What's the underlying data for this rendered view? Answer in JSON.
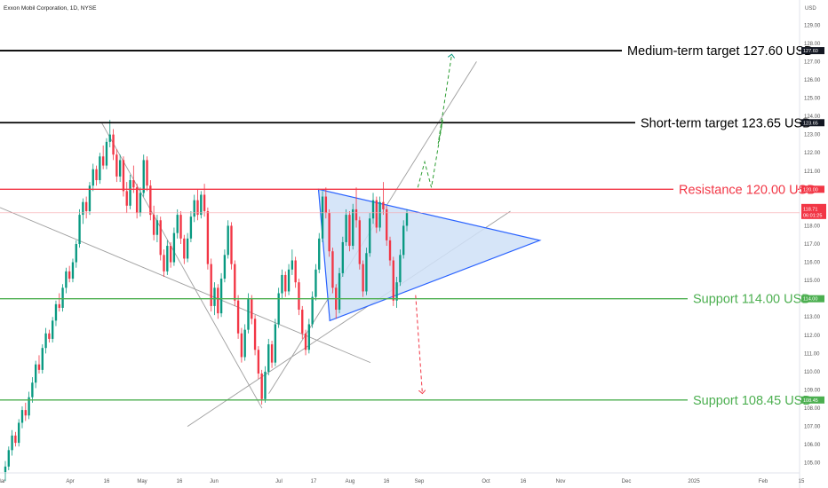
{
  "header": {
    "symbol_title": "Exxon Mobil Corporation, 1D, NYSE",
    "currency": "USD"
  },
  "colors": {
    "up": "#089981",
    "down": "#f23645",
    "resistance": "#f23645",
    "support": "#4caf50",
    "target": "#000000",
    "triangle_edge": "#2962ff",
    "triangle_fill": "#cfe0f7",
    "channel": "#9e9e9e",
    "price_line": "#f7a8ae"
  },
  "chart_data": {
    "type": "candlestick",
    "ylim": [
      104.5,
      129.5
    ],
    "y_ticks": [
      105,
      106,
      107,
      108,
      109,
      110,
      111,
      112,
      113,
      114,
      115,
      116,
      117,
      118,
      119,
      120,
      121,
      122,
      123,
      124,
      125,
      126,
      127,
      128,
      129
    ],
    "x_labels": [
      "Mar",
      "Apr",
      "16",
      "May",
      "16",
      "Jun",
      "Jul",
      "17",
      "Aug",
      "16",
      "Sep",
      "Oct",
      "16",
      "Nov",
      "Dec",
      "2025",
      "Feb",
      "15"
    ],
    "levels": [
      {
        "name": "medium-target",
        "label": "Medium-term target 127.60 USD",
        "price": 127.6,
        "tag": "127.60",
        "kind": "target"
      },
      {
        "name": "short-target",
        "label": "Short-term target 123.65 USD",
        "price": 123.65,
        "tag": "123.65",
        "kind": "target"
      },
      {
        "name": "resistance",
        "label": "Resistance 120.00 USD",
        "price": 120.0,
        "tag": "120.00",
        "kind": "resistance"
      },
      {
        "name": "support-114",
        "label": "Support 114.00 USD",
        "price": 114.0,
        "tag": "114.00",
        "kind": "support"
      },
      {
        "name": "support-108",
        "label": "Support 108.45 USD",
        "price": 108.45,
        "tag": "108.45",
        "kind": "support"
      }
    ],
    "current_price": {
      "price": 118.71,
      "tag": "118.71",
      "countdown": "06:01:25"
    },
    "candles": [
      [
        104.5,
        105.1,
        104.0,
        104.8
      ],
      [
        104.8,
        105.9,
        104.6,
        105.7
      ],
      [
        105.7,
        106.8,
        105.4,
        106.5
      ],
      [
        106.5,
        106.7,
        105.9,
        106.1
      ],
      [
        106.1,
        107.4,
        105.9,
        107.2
      ],
      [
        107.2,
        108.1,
        106.9,
        107.9
      ],
      [
        107.9,
        108.3,
        107.3,
        107.6
      ],
      [
        107.6,
        108.9,
        107.4,
        108.6
      ],
      [
        108.6,
        109.7,
        108.3,
        109.4
      ],
      [
        109.4,
        110.6,
        109.1,
        110.4
      ],
      [
        110.4,
        110.9,
        109.9,
        110.1
      ],
      [
        110.1,
        111.5,
        109.9,
        111.3
      ],
      [
        111.3,
        112.4,
        111.0,
        112.1
      ],
      [
        112.1,
        112.3,
        111.6,
        111.8
      ],
      [
        111.8,
        113.0,
        111.6,
        112.8
      ],
      [
        112.8,
        113.9,
        112.5,
        113.7
      ],
      [
        113.7,
        114.3,
        113.3,
        113.5
      ],
      [
        113.5,
        114.8,
        113.3,
        114.6
      ],
      [
        114.6,
        115.7,
        114.3,
        115.5
      ],
      [
        115.5,
        115.8,
        114.9,
        115.1
      ],
      [
        115.1,
        116.2,
        114.9,
        116.0
      ],
      [
        116.0,
        117.2,
        115.7,
        117.0
      ],
      [
        117.0,
        118.9,
        116.8,
        118.6
      ],
      [
        118.6,
        119.5,
        118.1,
        119.3
      ],
      [
        119.3,
        119.6,
        118.4,
        118.8
      ],
      [
        118.8,
        120.4,
        118.6,
        120.2
      ],
      [
        120.2,
        121.4,
        119.9,
        121.1
      ],
      [
        121.1,
        121.3,
        120.2,
        120.5
      ],
      [
        120.5,
        122.0,
        120.3,
        121.8
      ],
      [
        121.8,
        122.4,
        121.1,
        121.3
      ],
      [
        121.3,
        122.8,
        121.1,
        122.6
      ],
      [
        122.6,
        123.8,
        122.3,
        123.0
      ],
      [
        123.0,
        123.3,
        121.6,
        121.9
      ],
      [
        121.9,
        122.2,
        120.4,
        120.7
      ],
      [
        120.7,
        121.9,
        120.4,
        121.6
      ],
      [
        121.6,
        121.8,
        119.6,
        119.9
      ],
      [
        119.9,
        120.4,
        118.7,
        119.1
      ],
      [
        119.1,
        120.8,
        118.9,
        120.5
      ],
      [
        120.5,
        121.3,
        119.8,
        120.1
      ],
      [
        120.1,
        120.3,
        118.4,
        118.7
      ],
      [
        118.7,
        120.1,
        118.5,
        119.8
      ],
      [
        119.8,
        121.9,
        119.6,
        121.6
      ],
      [
        121.6,
        121.8,
        119.9,
        120.2
      ],
      [
        120.2,
        120.5,
        118.3,
        118.6
      ],
      [
        118.6,
        119.1,
        117.2,
        117.5
      ],
      [
        117.5,
        118.6,
        117.1,
        118.3
      ],
      [
        118.3,
        118.5,
        116.1,
        116.4
      ],
      [
        116.4,
        116.7,
        115.2,
        115.5
      ],
      [
        115.5,
        117.2,
        115.3,
        116.9
      ],
      [
        116.9,
        117.1,
        115.7,
        116.0
      ],
      [
        116.0,
        117.9,
        115.8,
        117.6
      ],
      [
        117.6,
        118.9,
        117.3,
        118.6
      ],
      [
        118.6,
        118.8,
        117.0,
        117.3
      ],
      [
        117.3,
        117.5,
        115.9,
        116.2
      ],
      [
        116.2,
        117.6,
        116.0,
        117.3
      ],
      [
        117.3,
        118.8,
        117.1,
        118.5
      ],
      [
        118.5,
        119.7,
        118.2,
        119.4
      ],
      [
        119.4,
        120.0,
        118.3,
        118.6
      ],
      [
        118.6,
        119.9,
        118.4,
        119.7
      ],
      [
        119.7,
        120.3,
        118.5,
        118.8
      ],
      [
        118.8,
        119.0,
        115.6,
        115.9
      ],
      [
        115.9,
        116.2,
        113.3,
        113.6
      ],
      [
        113.6,
        114.9,
        113.1,
        114.6
      ],
      [
        114.6,
        114.8,
        112.9,
        113.2
      ],
      [
        113.2,
        115.4,
        113.0,
        115.1
      ],
      [
        115.1,
        116.7,
        114.9,
        116.4
      ],
      [
        116.4,
        118.3,
        116.2,
        118.0
      ],
      [
        118.0,
        118.2,
        115.6,
        115.9
      ],
      [
        115.9,
        116.1,
        113.6,
        113.9
      ],
      [
        113.9,
        114.2,
        111.8,
        112.1
      ],
      [
        112.1,
        112.4,
        110.5,
        110.8
      ],
      [
        110.8,
        112.6,
        110.6,
        112.3
      ],
      [
        112.3,
        114.3,
        112.1,
        114.0
      ],
      [
        114.0,
        114.2,
        112.6,
        112.9
      ],
      [
        112.9,
        113.1,
        110.9,
        111.2
      ],
      [
        111.2,
        111.4,
        109.6,
        109.9
      ],
      [
        109.9,
        110.1,
        108.2,
        108.5
      ],
      [
        108.5,
        110.3,
        108.3,
        110.0
      ],
      [
        110.0,
        111.8,
        109.8,
        111.5
      ],
      [
        111.5,
        111.7,
        110.2,
        110.5
      ],
      [
        110.5,
        112.9,
        110.3,
        112.6
      ],
      [
        112.6,
        114.6,
        112.4,
        114.3
      ],
      [
        114.3,
        115.6,
        114.0,
        115.3
      ],
      [
        115.3,
        115.5,
        114.1,
        114.4
      ],
      [
        114.4,
        115.9,
        114.2,
        115.6
      ],
      [
        115.6,
        116.7,
        115.3,
        116.1
      ],
      [
        116.1,
        116.3,
        114.6,
        114.9
      ],
      [
        114.9,
        115.1,
        113.1,
        113.4
      ],
      [
        113.4,
        113.6,
        111.8,
        112.1
      ],
      [
        112.1,
        112.3,
        110.9,
        111.2
      ],
      [
        111.2,
        112.9,
        111.0,
        112.6
      ],
      [
        112.6,
        114.4,
        112.4,
        114.1
      ],
      [
        114.1,
        115.9,
        113.9,
        115.6
      ],
      [
        115.6,
        117.6,
        115.4,
        117.3
      ],
      [
        117.3,
        119.9,
        117.1,
        119.6
      ],
      [
        119.6,
        120.1,
        118.4,
        118.7
      ],
      [
        118.7,
        118.9,
        116.3,
        116.6
      ],
      [
        116.6,
        116.8,
        114.3,
        114.6
      ],
      [
        114.6,
        114.8,
        112.9,
        113.4
      ],
      [
        113.4,
        115.7,
        113.2,
        115.4
      ],
      [
        115.4,
        117.4,
        115.2,
        117.1
      ],
      [
        117.1,
        118.9,
        116.9,
        118.6
      ],
      [
        118.6,
        118.8,
        116.6,
        116.9
      ],
      [
        116.9,
        119.2,
        116.7,
        118.9
      ],
      [
        118.9,
        120.1,
        117.9,
        118.3
      ],
      [
        118.3,
        118.5,
        115.6,
        115.9
      ],
      [
        115.9,
        116.1,
        114.1,
        114.4
      ],
      [
        114.4,
        116.8,
        114.2,
        116.5
      ],
      [
        116.5,
        118.7,
        116.3,
        118.4
      ],
      [
        118.4,
        119.8,
        118.1,
        119.4
      ],
      [
        119.4,
        119.6,
        117.6,
        117.9
      ],
      [
        117.9,
        119.6,
        117.7,
        119.3
      ],
      [
        119.3,
        120.4,
        118.6,
        118.9
      ],
      [
        118.9,
        119.1,
        116.9,
        117.2
      ],
      [
        117.2,
        117.4,
        115.8,
        116.1
      ],
      [
        116.1,
        116.3,
        113.6,
        113.9
      ],
      [
        113.9,
        115.2,
        113.5,
        114.9
      ],
      [
        114.9,
        116.7,
        114.7,
        116.4
      ],
      [
        116.4,
        118.3,
        116.2,
        118.0
      ],
      [
        118.0,
        118.9,
        117.7,
        118.7
      ]
    ],
    "triangle": {
      "top": [
        "2024-07-17",
        120.0
      ],
      "bottom": [
        "2024-07-22",
        112.8
      ],
      "apex": [
        "2024-10-23",
        117.2
      ]
    },
    "channel_down": {
      "upper": [
        [
          "2024-02-27",
          119.0
        ],
        [
          "2024-08-09",
          110.5
        ]
      ],
      "lower": [
        [
          "2024-04-12",
          123.65
        ],
        [
          "2024-06-22",
          108.0
        ]
      ]
    },
    "channel_up": {
      "lower": [
        [
          "2024-05-20",
          107.0
        ],
        [
          "2024-10-10",
          118.8
        ]
      ],
      "upper": [
        [
          "2024-06-25",
          108.8
        ],
        [
          "2024-09-25",
          127.0
        ]
      ]
    },
    "projections": [
      {
        "name": "bullish-path",
        "points": [
          [
            "2024-08-30",
            120.1
          ],
          [
            "2024-09-02",
            121.5
          ],
          [
            "2024-09-05",
            120.1
          ],
          [
            "2024-09-10",
            123.8
          ],
          [
            "2024-09-08",
            122.5
          ],
          [
            "2024-09-14",
            127.4
          ]
        ]
      },
      {
        "name": "bearish-path",
        "points": [
          [
            "2024-08-29",
            114.2
          ],
          [
            "2024-09-01",
            108.8
          ]
        ]
      }
    ]
  }
}
